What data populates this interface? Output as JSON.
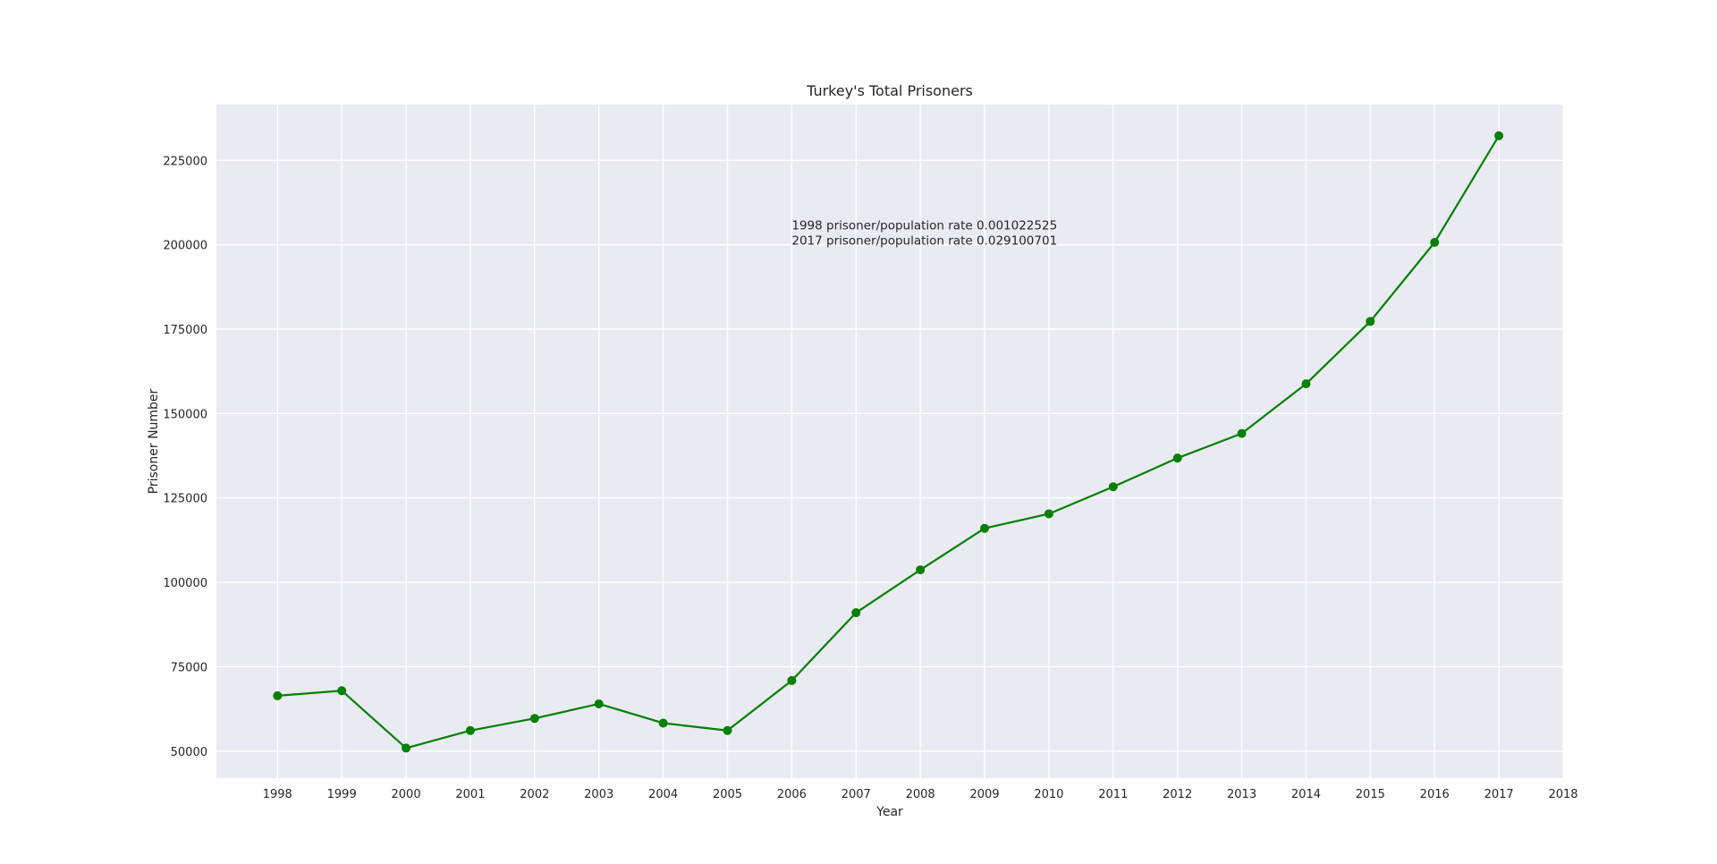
{
  "chart_data": {
    "type": "line",
    "title": "Turkey's Total Prisoners",
    "xlabel": "Year",
    "ylabel": "Prisoner Number",
    "x": [
      1998,
      1999,
      2000,
      2001,
      2002,
      2003,
      2004,
      2005,
      2006,
      2007,
      2008,
      2009,
      2010,
      2011,
      2012,
      2013,
      2014,
      2015,
      2016,
      2017
    ],
    "series": [
      {
        "values": [
          66400,
          67900,
          50900,
          56100,
          59700,
          64000,
          58300,
          56100,
          70900,
          91000,
          103700,
          116000,
          120300,
          128300,
          136800,
          144100,
          158800,
          177300,
          200700,
          232300
        ],
        "color": "#008000",
        "marker": "circle"
      }
    ],
    "xticks": [
      "1998",
      "1999",
      "2000",
      "2001",
      "2002",
      "2003",
      "2004",
      "2005",
      "2006",
      "2007",
      "2008",
      "2009",
      "2010",
      "2011",
      "2012",
      "2013",
      "2014",
      "2015",
      "2016",
      "2017",
      "2018"
    ],
    "yticks": [
      "50000",
      "75000",
      "100000",
      "125000",
      "150000",
      "175000",
      "200000",
      "225000"
    ],
    "xlim": [
      1997.05,
      2018
    ],
    "ylim": [
      42000,
      241500
    ],
    "grid": true,
    "background_color": "#EAEAF2",
    "annotations": [
      "1998 prisoner/population rate 0.001022525",
      "2017 prisoner/population rate 0.029100701"
    ]
  }
}
